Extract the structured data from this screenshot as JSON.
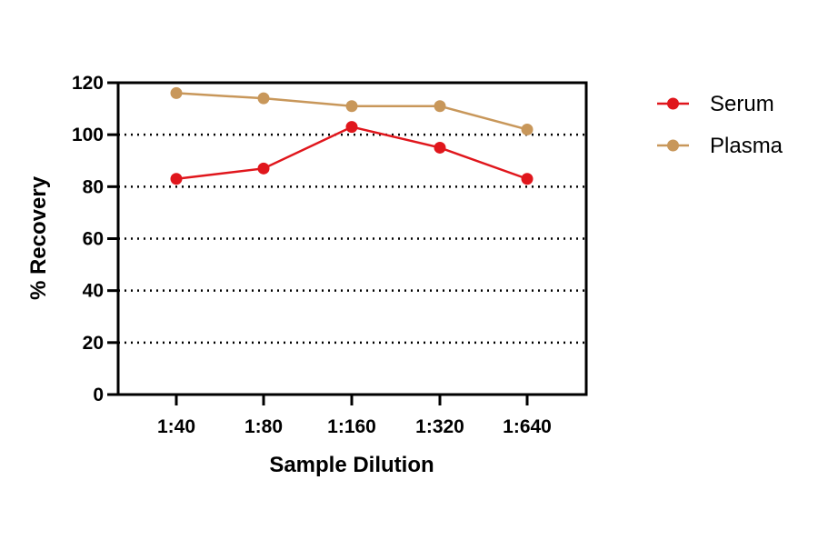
{
  "chart_data": {
    "type": "line",
    "title": "",
    "xlabel": "Sample Dilution",
    "ylabel": "% Recovery",
    "categories": [
      "1:40",
      "1:80",
      "1:160",
      "1:320",
      "1:640"
    ],
    "ylim": [
      0,
      120
    ],
    "yticks": [
      0,
      20,
      40,
      60,
      80,
      100,
      120
    ],
    "grid": "dotted horizontal",
    "legend_position": "right",
    "series": [
      {
        "name": "Serum",
        "color": "#e0161c",
        "values": [
          83,
          87,
          103,
          95,
          83
        ]
      },
      {
        "name": "Plasma",
        "color": "#c8975a",
        "values": [
          116,
          114,
          111,
          111,
          102
        ]
      }
    ]
  }
}
